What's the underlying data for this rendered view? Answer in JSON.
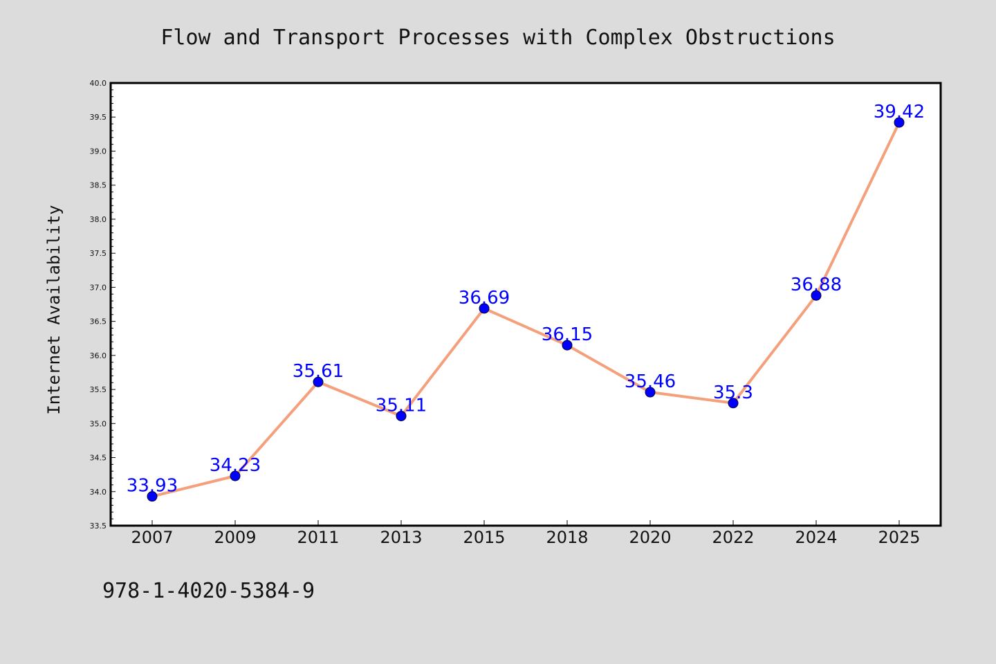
{
  "chart_data": {
    "type": "line",
    "title": "Flow and Transport Processes with Complex Obstructions",
    "xlabel": "",
    "ylabel": "Internet Availability",
    "categories": [
      "2007",
      "2009",
      "2011",
      "2013",
      "2015",
      "2018",
      "2020",
      "2022",
      "2024",
      "2025"
    ],
    "values": [
      33.93,
      34.23,
      35.61,
      35.11,
      36.69,
      36.15,
      35.46,
      35.3,
      36.88,
      39.42
    ],
    "data_labels": [
      "33.93",
      "34.23",
      "35.61",
      "35.11",
      "36.69",
      "36.15",
      "35.46",
      "35.3",
      "36.88",
      "39.42"
    ],
    "ylim": [
      33.5,
      40.0
    ],
    "yticks": [
      "33.5",
      "34.0",
      "34.5",
      "35.0",
      "35.5",
      "36.0",
      "36.5",
      "37.0",
      "37.5",
      "38.0",
      "38.5",
      "39.0",
      "39.5",
      "40.0"
    ],
    "grid": false,
    "line_color": "#f4a07c",
    "marker_color": "#0000ff",
    "label_color": "#0000ff"
  },
  "footer": {
    "text": "978-1-4020-5384-9"
  }
}
